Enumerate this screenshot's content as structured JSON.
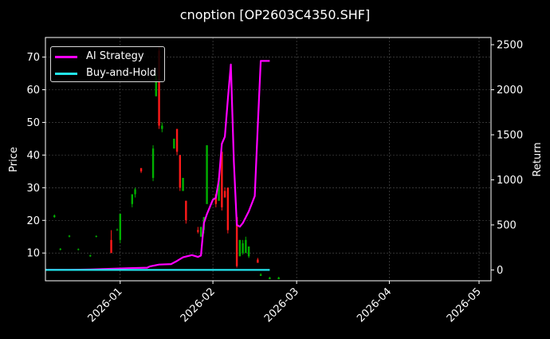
{
  "chart_data": {
    "type": "candlestick",
    "title": "cnoption [OP2603C4350.SHF]",
    "xlabel": "",
    "ylabel": "Price",
    "y2label": "Return",
    "xlim": [
      "2025-12-07",
      "2026-05-05"
    ],
    "ylim": [
      1.5,
      76
    ],
    "y2lim": [
      -120,
      2580
    ],
    "x_ticks": [
      "2026-01",
      "2026-02",
      "2026-03",
      "2026-04",
      "2026-05"
    ],
    "y_ticks": [
      10,
      20,
      30,
      40,
      50,
      60,
      70
    ],
    "y2_ticks": [
      0,
      500,
      1000,
      1500,
      2000,
      2500
    ],
    "grid": true,
    "legend_position": "top-left",
    "colors": {
      "background": "#000000",
      "up": "#00b000",
      "down": "#ff1a1a",
      "ai_strategy": "#ff00ff",
      "buy_and_hold": "#22e6ee",
      "grid": "#555555",
      "axis": "#ffffff"
    },
    "candles": [
      {
        "date": "2025-12-10",
        "open": 21,
        "close": 21.5,
        "high": 21.8,
        "low": 20.8
      },
      {
        "date": "2025-12-12",
        "open": 11,
        "close": 11.3,
        "high": 11.5,
        "low": 10.8
      },
      {
        "date": "2025-12-15",
        "open": 15,
        "close": 15.3,
        "high": 15.5,
        "low": 14.8
      },
      {
        "date": "2025-12-18",
        "open": 11,
        "close": 11.2,
        "high": 11.4,
        "low": 10.8
      },
      {
        "date": "2025-12-22",
        "open": 9,
        "close": 9.3,
        "high": 9.5,
        "low": 8.8
      },
      {
        "date": "2025-12-24",
        "open": 15,
        "close": 15.2,
        "high": 15.4,
        "low": 14.8
      },
      {
        "date": "2025-12-29",
        "open": 14,
        "close": 10,
        "high": 17,
        "low": 10
      },
      {
        "date": "2025-12-31",
        "open": 17,
        "close": 17.2,
        "high": 17.5,
        "low": 16.8
      },
      {
        "date": "2026-01-01",
        "open": 14,
        "close": 22,
        "high": 22,
        "low": 13
      },
      {
        "date": "2026-01-05",
        "open": 25,
        "close": 28,
        "high": 28,
        "low": 24
      },
      {
        "date": "2026-01-06",
        "open": 28,
        "close": 29.5,
        "high": 30,
        "low": 27
      },
      {
        "date": "2026-01-08",
        "open": 36,
        "close": 35,
        "high": 36,
        "low": 34.5
      },
      {
        "date": "2026-01-12",
        "open": 33,
        "close": 42,
        "high": 43,
        "low": 32
      },
      {
        "date": "2026-01-13",
        "open": 58,
        "close": 65,
        "high": 66,
        "low": 58
      },
      {
        "date": "2026-01-14",
        "open": 72,
        "close": 49,
        "high": 73,
        "low": 48
      },
      {
        "date": "2026-01-15",
        "open": 48,
        "close": 49,
        "high": 50,
        "low": 47
      },
      {
        "date": "2026-01-19",
        "open": 42,
        "close": 45,
        "high": 45,
        "low": 42
      },
      {
        "date": "2026-01-20",
        "open": 48,
        "close": 41,
        "high": 48,
        "low": 40
      },
      {
        "date": "2026-01-21",
        "open": 40,
        "close": 30,
        "high": 40,
        "low": 29
      },
      {
        "date": "2026-01-22",
        "open": 29,
        "close": 33,
        "high": 33,
        "low": 29
      },
      {
        "date": "2026-01-23",
        "open": 26,
        "close": 20,
        "high": 26,
        "low": 19
      },
      {
        "date": "2026-01-27",
        "open": 17,
        "close": 16.5,
        "high": 18,
        "low": 16
      },
      {
        "date": "2026-01-28",
        "open": 15,
        "close": 18,
        "high": 18,
        "low": 15
      },
      {
        "date": "2026-01-29",
        "open": 17,
        "close": 21,
        "high": 21,
        "low": 16
      },
      {
        "date": "2026-01-30",
        "open": 25,
        "close": 43,
        "high": 43,
        "low": 25
      },
      {
        "date": "2026-02-02",
        "open": 28,
        "close": 25,
        "high": 28,
        "low": 24
      },
      {
        "date": "2026-02-03",
        "open": 26,
        "close": 33,
        "high": 34,
        "low": 26
      },
      {
        "date": "2026-02-04",
        "open": 41,
        "close": 24,
        "high": 41,
        "low": 23
      },
      {
        "date": "2026-02-05",
        "open": 29,
        "close": 27,
        "high": 30,
        "low": 27
      },
      {
        "date": "2026-02-06",
        "open": 30,
        "close": 17,
        "high": 30,
        "low": 16
      },
      {
        "date": "2026-02-09",
        "open": 21,
        "close": 6,
        "high": 21,
        "low": 5.5
      },
      {
        "date": "2026-02-10",
        "open": 9,
        "close": 14,
        "high": 14,
        "low": 9
      },
      {
        "date": "2026-02-11",
        "open": 10,
        "close": 13,
        "high": 14,
        "low": 9.5
      },
      {
        "date": "2026-02-12",
        "open": 10,
        "close": 14,
        "high": 15,
        "low": 10
      },
      {
        "date": "2026-02-13",
        "open": 9,
        "close": 12,
        "high": 12,
        "low": 8.5
      },
      {
        "date": "2026-02-16",
        "open": 8,
        "close": 7,
        "high": 8.5,
        "low": 7
      },
      {
        "date": "2026-02-17",
        "open": 3,
        "close": 3.5,
        "high": 3.8,
        "low": 3
      },
      {
        "date": "2026-02-20",
        "open": 2,
        "close": 2.5,
        "high": 2.7,
        "low": 2
      },
      {
        "date": "2026-02-23",
        "open": 2,
        "close": 2.5,
        "high": 2.7,
        "low": 2
      }
    ],
    "series": [
      {
        "name": "AI Strategy",
        "axis": "right",
        "points": [
          [
            "2025-12-07",
            0
          ],
          [
            "2025-12-15",
            0
          ],
          [
            "2025-12-22",
            5
          ],
          [
            "2025-12-28",
            12
          ],
          [
            "2026-01-04",
            20
          ],
          [
            "2026-01-10",
            25
          ],
          [
            "2026-01-11",
            40
          ],
          [
            "2026-01-14",
            60
          ],
          [
            "2026-01-18",
            65
          ],
          [
            "2026-01-20",
            100
          ],
          [
            "2026-01-22",
            140
          ],
          [
            "2026-01-25",
            165
          ],
          [
            "2026-01-27",
            145
          ],
          [
            "2026-01-28",
            160
          ],
          [
            "2026-01-29",
            520
          ],
          [
            "2026-01-30",
            620
          ],
          [
            "2026-01-31",
            700
          ],
          [
            "2026-02-01",
            780
          ],
          [
            "2026-02-02",
            800
          ],
          [
            "2026-02-03",
            1000
          ],
          [
            "2026-02-04",
            1400
          ],
          [
            "2026-02-05",
            1480
          ],
          [
            "2026-02-06",
            1900
          ],
          [
            "2026-02-07",
            2280
          ],
          [
            "2026-02-08",
            1200
          ],
          [
            "2026-02-09",
            500
          ],
          [
            "2026-02-10",
            480
          ],
          [
            "2026-02-11",
            520
          ],
          [
            "2026-02-13",
            650
          ],
          [
            "2026-02-15",
            820
          ],
          [
            "2026-02-16",
            1600
          ],
          [
            "2026-02-17",
            2320
          ],
          [
            "2026-02-20",
            2320
          ]
        ]
      },
      {
        "name": "Buy-and-Hold",
        "axis": "right",
        "points": [
          [
            "2025-12-07",
            0
          ],
          [
            "2026-02-20",
            0
          ]
        ]
      }
    ]
  }
}
